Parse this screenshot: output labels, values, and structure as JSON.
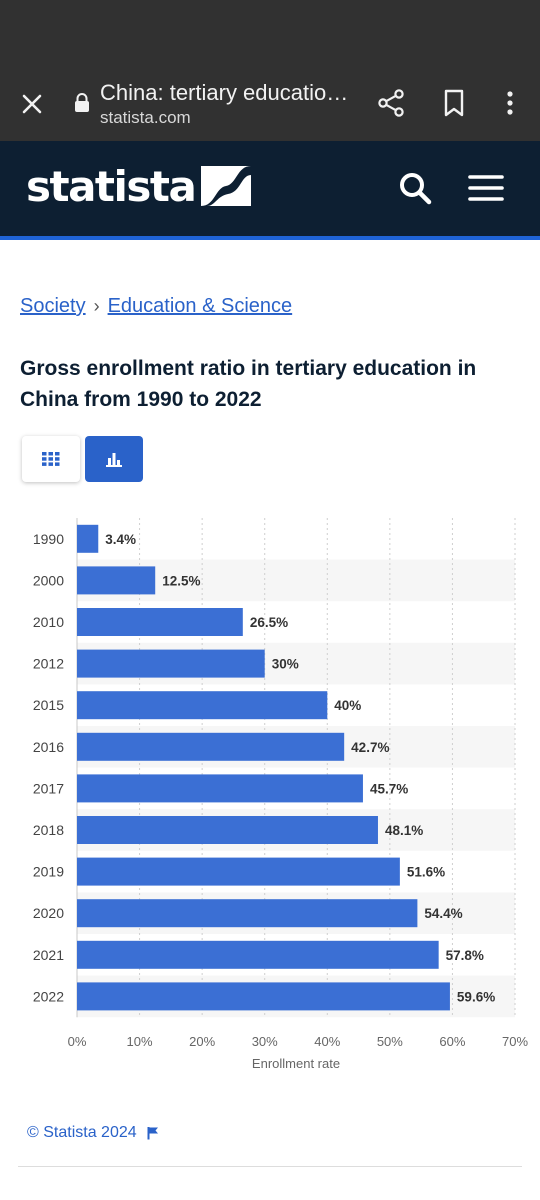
{
  "browser": {
    "tab_title": "China: tertiary educatio…",
    "url": "statista.com"
  },
  "site": {
    "logo_text": "statista"
  },
  "breadcrumb": {
    "items": [
      "Society",
      "Education & Science"
    ],
    "separator": "›"
  },
  "chart_title": "Gross enrollment ratio in tertiary education in China from 1990 to 2022",
  "colors": {
    "bar": "#3b6fd4",
    "header_bg": "#0d1f32",
    "accent": "#1f63d6",
    "link": "#2a62c9"
  },
  "icons": {
    "table_view": "table-grid-icon",
    "chart_view": "bar-chart-icon",
    "search": "search-icon",
    "menu": "hamburger-menu-icon"
  },
  "chart_data": {
    "type": "bar",
    "orientation": "horizontal",
    "categories": [
      "1990",
      "2000",
      "2010",
      "2012",
      "2015",
      "2016",
      "2017",
      "2018",
      "2019",
      "2020",
      "2021",
      "2022"
    ],
    "values": [
      3.4,
      12.5,
      26.5,
      30,
      40,
      42.7,
      45.7,
      48.1,
      51.6,
      54.4,
      57.8,
      59.6
    ],
    "value_labels": [
      "3.4%",
      "12.5%",
      "26.5%",
      "30%",
      "40%",
      "42.7%",
      "45.7%",
      "48.1%",
      "51.6%",
      "54.4%",
      "57.8%",
      "59.6%"
    ],
    "xlabel": "Enrollment rate",
    "ylabel": "",
    "xlim": [
      0,
      70
    ],
    "xticks": [
      0,
      10,
      20,
      30,
      40,
      50,
      60,
      70
    ],
    "xtick_labels": [
      "0%",
      "10%",
      "20%",
      "30%",
      "40%",
      "50%",
      "60%",
      "70%"
    ],
    "grid": true
  },
  "footer": {
    "copyright": "© Statista 2024"
  }
}
